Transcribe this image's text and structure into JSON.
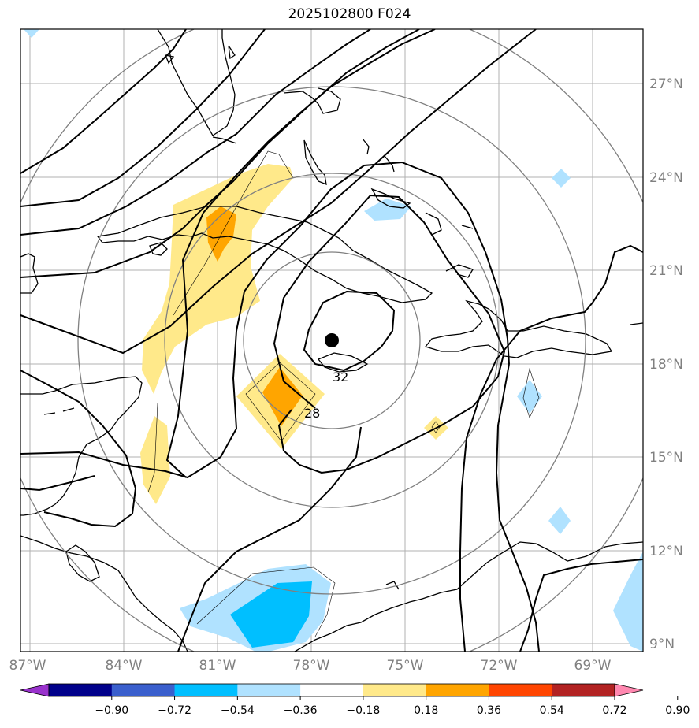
{
  "title": "2025102800 F024",
  "map": {
    "lon_range": [
      -87.2,
      -67.4
    ],
    "lat_range": [
      8.9,
      28.6
    ],
    "lat_ticks": [
      "9°N",
      "12°N",
      "15°N",
      "18°N",
      "21°N",
      "24°N",
      "27°N"
    ],
    "lon_ticks": [
      "87°W",
      "84°W",
      "81°W",
      "78°W",
      "75°W",
      "72°W",
      "69°W"
    ],
    "storm_center": {
      "lon": -77.5,
      "lat": 18.8
    },
    "contour_labels": [
      "32",
      "28"
    ],
    "range_ring_color": "#808080",
    "contour_color": "#000000"
  },
  "colorbar": {
    "colors": [
      "#9932cc",
      "#00008b",
      "#3a5fcd",
      "#00bfff",
      "#b0e2ff",
      "#ffffff",
      "#ffe98a",
      "#ffa500",
      "#ff4500",
      "#b22222",
      "#ff88b0"
    ],
    "tick_labels": [
      "−0.90",
      "−0.72",
      "−0.54",
      "−0.36",
      "−0.18",
      "0.18",
      "0.36",
      "0.54",
      "0.72",
      "0.90"
    ]
  }
}
